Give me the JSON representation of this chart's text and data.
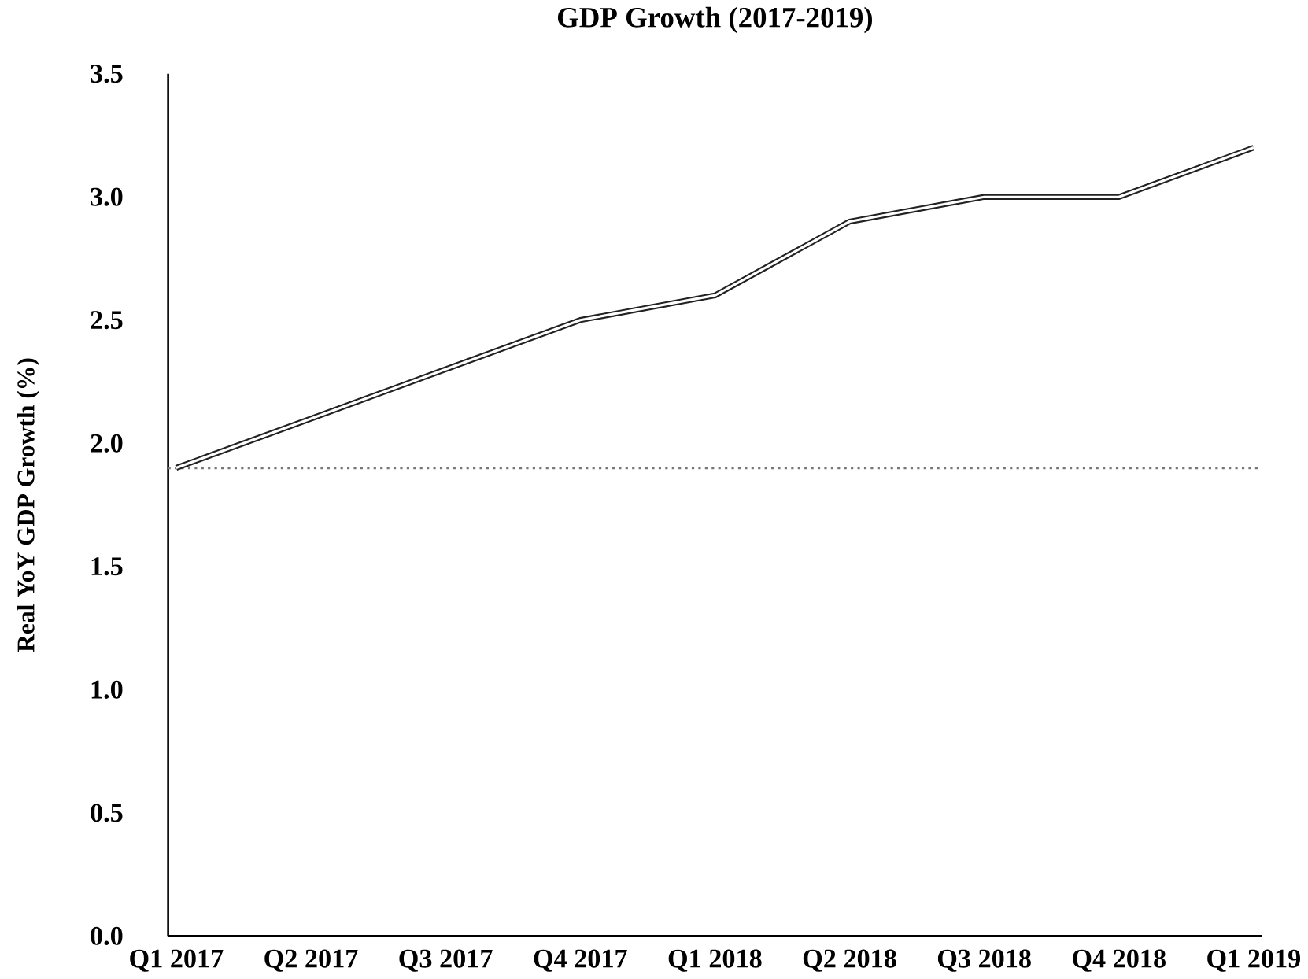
{
  "chart_data": {
    "type": "line",
    "title": "GDP Growth (2017-2019)",
    "ylabel": "Real YoY GDP Growth (%)",
    "categories": [
      "Q1 2017",
      "Q2 2017",
      "Q3 2017",
      "Q4 2017",
      "Q1 2018",
      "Q2 2018",
      "Q3 2018",
      "Q4 2018",
      "Q1 2019"
    ],
    "series": [
      {
        "color": "#222222",
        "values": [
          1.9,
          2.1,
          2.3,
          2.5,
          2.6,
          2.9,
          3.0,
          3.0,
          3.2
        ]
      }
    ],
    "ylim": [
      0,
      3.5
    ],
    "yticks": [
      {
        "value": 0,
        "label": "0.0"
      },
      {
        "value": 0.5,
        "label": "0.5"
      },
      {
        "value": 1,
        "label": "1.0"
      },
      {
        "value": 1.5,
        "label": "1.5"
      },
      {
        "value": 2,
        "label": "2.0"
      },
      {
        "value": 2.5,
        "label": "2.5"
      },
      {
        "value": 3,
        "label": "3.0"
      },
      {
        "value": 3.5,
        "label": "3.5"
      }
    ],
    "ref_lines": [
      {
        "axis": "y",
        "value": 1.9,
        "color": "#777777",
        "line_style": "dotted"
      }
    ],
    "marker": "none",
    "line_style": "solid"
  }
}
